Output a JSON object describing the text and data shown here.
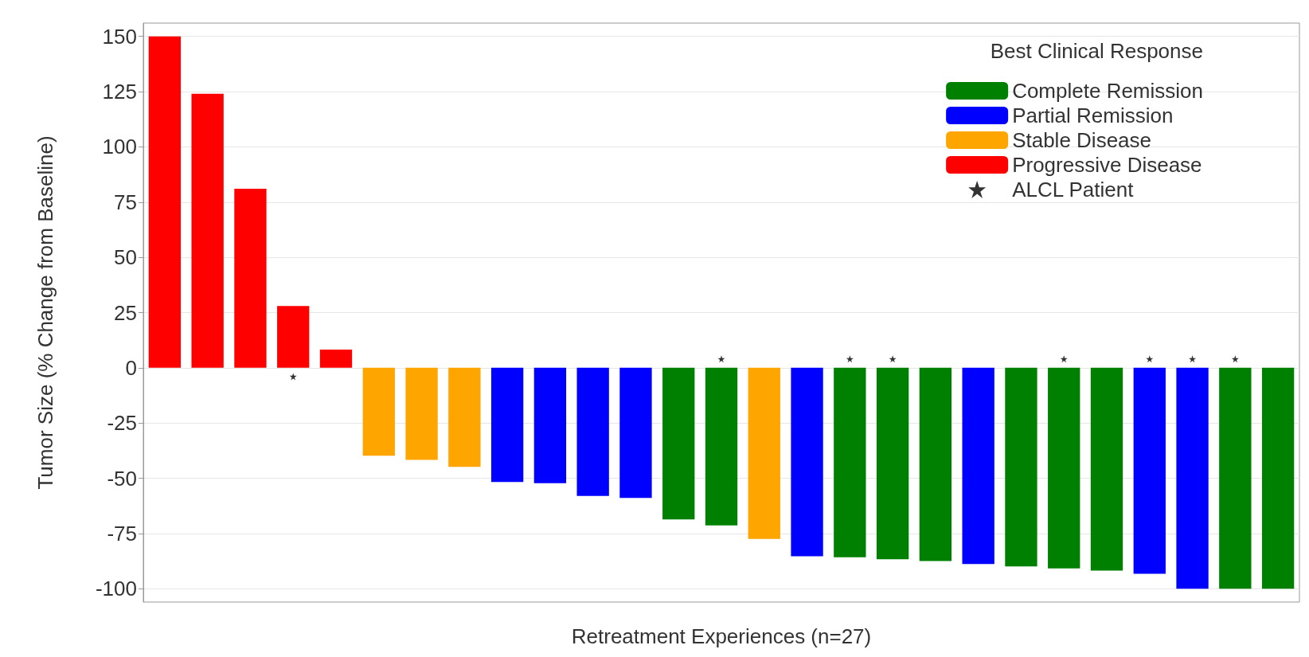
{
  "chart_data": {
    "type": "bar",
    "stacked": true,
    "xlabel": "Retreatment Experiences (n=27)",
    "ylabel": "Tumor Size (% Change from Baseline)",
    "legend_title": "Best Clinical Response",
    "legend": "top right",
    "grid": "y",
    "categories": [
      null,
      null,
      null,
      null,
      null,
      null,
      null,
      null,
      null,
      null,
      null,
      null,
      null,
      null,
      null,
      null,
      null,
      null,
      null,
      null,
      null,
      null,
      null,
      null,
      null,
      null,
      null
    ],
    "ylim": [
      -106,
      156
    ],
    "yticks": [
      -100,
      -75,
      -50,
      -25,
      0,
      25,
      50,
      75,
      100,
      125,
      150
    ],
    "series": [
      {
        "name": "Complete Remission",
        "color": "#008000",
        "values": [
          null,
          null,
          null,
          null,
          null,
          null,
          null,
          null,
          null,
          null,
          null,
          null,
          -68.6,
          -71.3,
          null,
          null,
          -85.7,
          -86.6,
          -87.4,
          null,
          -89.9,
          -90.8,
          -91.8,
          null,
          null,
          -100,
          -100
        ]
      },
      {
        "name": "Partial Remission",
        "color": "#0000ff",
        "values": [
          null,
          null,
          null,
          null,
          null,
          null,
          null,
          null,
          -51.7,
          -52.2,
          -58,
          -58.9,
          null,
          null,
          null,
          -85.3,
          null,
          null,
          null,
          -88.8,
          null,
          null,
          null,
          -93.2,
          -100,
          null,
          null
        ]
      },
      {
        "name": "Stable Disease",
        "color": "#ffa500",
        "values": [
          null,
          null,
          null,
          null,
          null,
          -39.8,
          -41.7,
          -44.8,
          null,
          null,
          null,
          null,
          null,
          null,
          -77.4,
          null,
          null,
          null,
          null,
          null,
          null,
          null,
          null,
          null,
          null,
          null,
          null
        ]
      },
      {
        "name": "Progressive Disease",
        "color": "#ff0000",
        "values": [
          150,
          124,
          81,
          28,
          8.2,
          null,
          null,
          null,
          null,
          null,
          null,
          null,
          null,
          null,
          null,
          null,
          null,
          null,
          null,
          null,
          null,
          null,
          null,
          null,
          null,
          null,
          null
        ]
      },
      {
        "name": "ALCL Patient",
        "type": "scatter",
        "marker": "star",
        "color": "#000000",
        "values": [
          null,
          null,
          null,
          -4,
          null,
          null,
          null,
          null,
          null,
          null,
          null,
          null,
          null,
          4,
          null,
          null,
          4,
          4,
          null,
          null,
          null,
          4,
          null,
          4,
          4,
          4,
          null
        ]
      }
    ]
  }
}
